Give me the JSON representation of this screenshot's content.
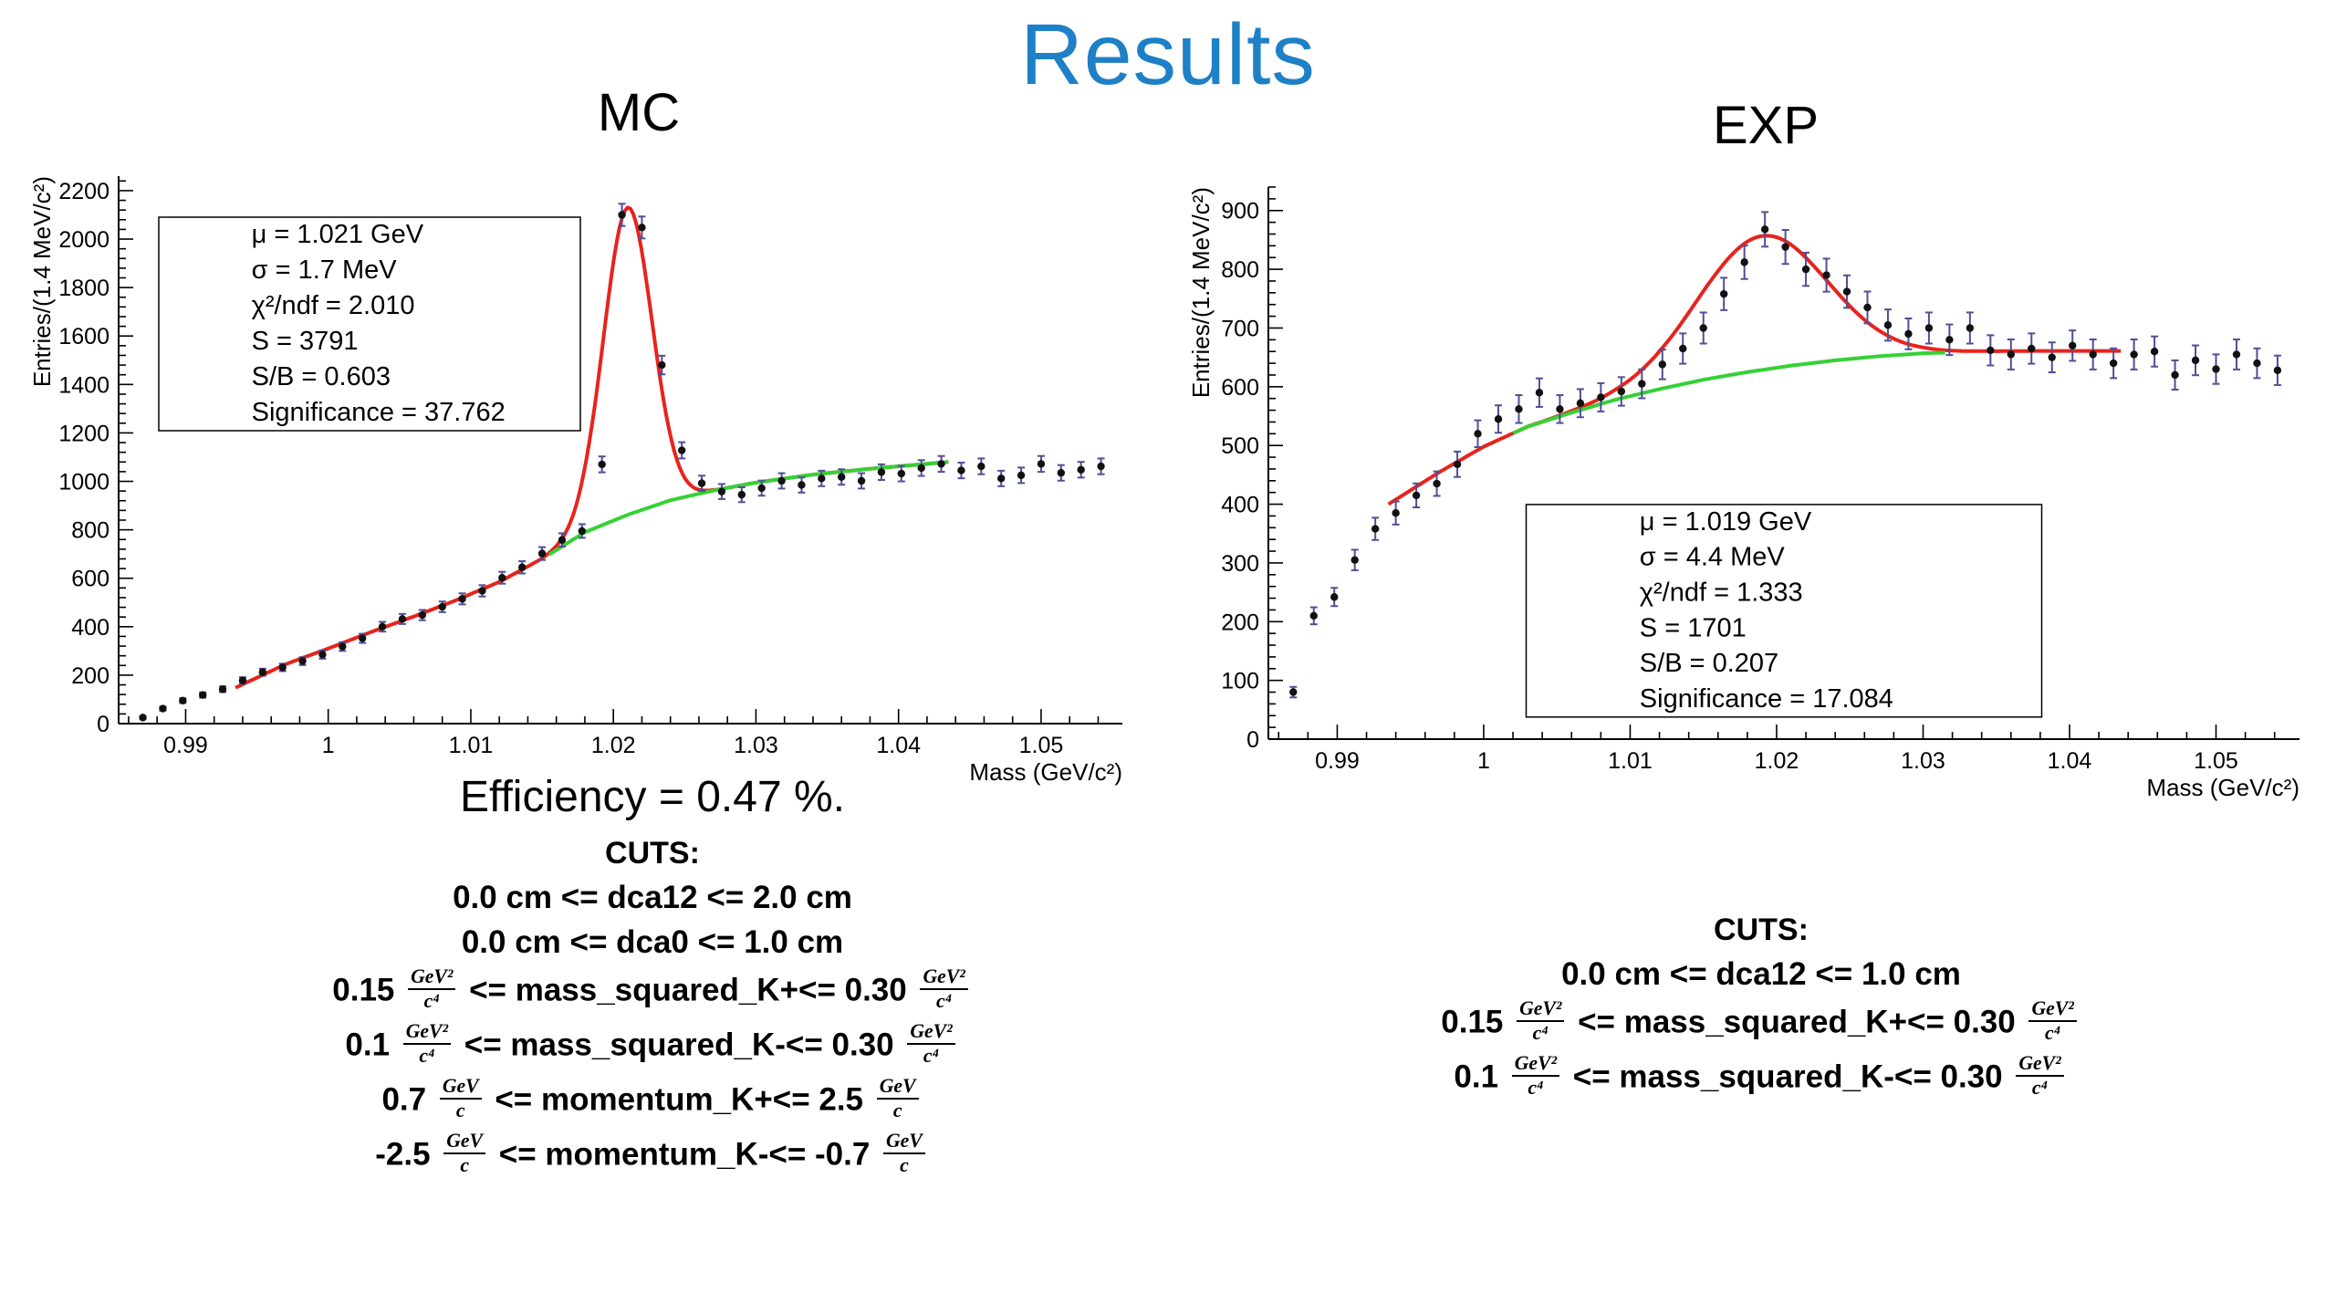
{
  "slide": {
    "title": "Results",
    "title_color": "#1e80c6"
  },
  "efficiency_label": "Efficiency = 0.47 %.",
  "colors": {
    "fit": "#e8231d",
    "background_fit": "#35d135",
    "marker": "#111111",
    "error": "#4f4f96",
    "axis": "#000000"
  },
  "chart_data": [
    {
      "id": "mc",
      "type": "scatter",
      "title": "MC",
      "xlabel": "Mass (GeV/c²)",
      "ylabel": "Entries/(1.4 MeV/c²)",
      "xlim": [
        0.9853,
        1.0557
      ],
      "ylim": [
        0,
        2260
      ],
      "x_major_ticks": [
        0.99,
        1,
        1.01,
        1.02,
        1.03,
        1.04,
        1.05
      ],
      "x_tick_labels": [
        "0.99",
        "1",
        "1.01",
        "1.02",
        "1.03",
        "1.04",
        "1.05"
      ],
      "x_minor_step": 0.002,
      "y_major_step": 200,
      "y_minor_step": 40,
      "y_label_max": 2200,
      "points": {
        "x_start": 0.987,
        "x_step": 0.0014,
        "errors": "sqrt",
        "values": [
          25,
          62,
          95,
          118,
          142,
          178,
          212,
          232,
          258,
          285,
          318,
          352,
          400,
          432,
          448,
          482,
          515,
          548,
          602,
          645,
          702,
          758,
          795,
          1070,
          2100,
          2048,
          1480,
          1128,
          992,
          958,
          945,
          972,
          1002,
          985,
          1012,
          1018,
          1002,
          1038,
          1032,
          1055,
          1072,
          1045,
          1062,
          1012,
          1025,
          1072,
          1035,
          1048,
          1062
        ]
      },
      "fit": {
        "model": "background + gaussian",
        "gaussian": {
          "amplitude": 1268,
          "mu": 1.021,
          "sigma": 0.0017
        },
        "background_points": [
          [
            0.9935,
            148
          ],
          [
            0.997,
            245
          ],
          [
            1.0,
            310
          ],
          [
            1.003,
            378
          ],
          [
            1.006,
            442
          ],
          [
            1.009,
            510
          ],
          [
            1.012,
            585
          ],
          [
            1.015,
            680
          ],
          [
            1.018,
            790
          ],
          [
            1.021,
            862
          ],
          [
            1.024,
            922
          ],
          [
            1.027,
            962
          ],
          [
            1.03,
            995
          ],
          [
            1.034,
            1028
          ],
          [
            1.038,
            1052
          ],
          [
            1.0435,
            1080
          ]
        ],
        "total_curve_range": [
          0.9935,
          1.0435
        ],
        "background_curve_range": [
          1.0155,
          1.0435
        ]
      },
      "stats_box": {
        "x": 0.04,
        "y": 0.075,
        "w": 0.42,
        "h": 0.39,
        "lines": [
          "μ = 1.021 GeV",
          "σ = 1.7 MeV",
          "χ²/ndf = 2.010",
          "S = 3791",
          "S/B = 0.603",
          "Significance = 37.762"
        ]
      }
    },
    {
      "id": "exp",
      "type": "scatter",
      "title": "EXP",
      "xlabel": "Mass (GeV/c²)",
      "ylabel": "Entries/(1.4 MeV/c²)",
      "xlim": [
        0.9853,
        1.0557
      ],
      "ylim": [
        0,
        940
      ],
      "x_major_ticks": [
        0.99,
        1,
        1.01,
        1.02,
        1.03,
        1.04,
        1.05
      ],
      "x_tick_labels": [
        "0.99",
        "1",
        "1.01",
        "1.02",
        "1.03",
        "1.04",
        "1.05"
      ],
      "x_minor_step": 0.002,
      "y_major_step": 100,
      "y_minor_step": 20,
      "y_label_max": 900,
      "points": {
        "x_start": 0.987,
        "x_step": 0.0014,
        "errors": "sqrt",
        "values": [
          80,
          210,
          242,
          305,
          358,
          385,
          415,
          435,
          468,
          520,
          545,
          562,
          590,
          562,
          572,
          582,
          592,
          605,
          638,
          665,
          700,
          758,
          812,
          868,
          838,
          800,
          790,
          762,
          735,
          705,
          690,
          700,
          680,
          700,
          662,
          655,
          665,
          650,
          670,
          655,
          640,
          655,
          660,
          620,
          645,
          630,
          655,
          640,
          628
        ]
      },
      "fit": {
        "model": "background + gaussian",
        "gaussian": {
          "amplitude": 228,
          "mu": 1.019,
          "sigma": 0.0044
        },
        "background_points": [
          [
            0.9935,
            400
          ],
          [
            0.997,
            455
          ],
          [
            1.0,
            498
          ],
          [
            1.003,
            532
          ],
          [
            1.006,
            556
          ],
          [
            1.009,
            578
          ],
          [
            1.012,
            596
          ],
          [
            1.015,
            612
          ],
          [
            1.018,
            625
          ],
          [
            1.021,
            636
          ],
          [
            1.024,
            645
          ],
          [
            1.027,
            652
          ],
          [
            1.03,
            657
          ],
          [
            1.034,
            660
          ],
          [
            1.038,
            661
          ],
          [
            1.0435,
            661
          ]
        ],
        "total_curve_range": [
          0.9935,
          1.0435
        ],
        "background_curve_range": [
          1.002,
          1.0315
        ]
      },
      "stats_box": {
        "x": 0.25,
        "y": 0.575,
        "w": 0.5,
        "h": 0.385,
        "lines": [
          "μ = 1.019 GeV",
          "σ = 4.4 MeV",
          "χ²/ndf = 1.333",
          "S = 1701",
          "S/B = 0.207",
          "Significance = 17.084"
        ]
      }
    }
  ],
  "cuts_mc": {
    "header": "CUTS:",
    "lines": [
      [
        {
          "t": "0.0 cm <= dca12 <= 2.0 cm"
        }
      ],
      [
        {
          "t": "0.0 cm <= dca0 <= 1.0 cm"
        }
      ],
      [
        {
          "t": "0.15 "
        },
        {
          "f": [
            "GeV²",
            "c⁴"
          ]
        },
        {
          "t": " <= mass_squared_K+<= 0.30 "
        },
        {
          "f": [
            "GeV²",
            "c⁴"
          ]
        }
      ],
      [
        {
          "t": "0.1 "
        },
        {
          "f": [
            "GeV²",
            "c⁴"
          ]
        },
        {
          "t": " <= mass_squared_K-<= 0.30 "
        },
        {
          "f": [
            "GeV²",
            "c⁴"
          ]
        }
      ],
      [
        {
          "t": "0.7 "
        },
        {
          "f": [
            "GeV",
            "c"
          ]
        },
        {
          "t": " <= momentum_K+<= 2.5 "
        },
        {
          "f": [
            "GeV",
            "c"
          ]
        }
      ],
      [
        {
          "t": "-2.5 "
        },
        {
          "f": [
            "GeV",
            "c"
          ]
        },
        {
          "t": " <= momentum_K-<= -0.7 "
        },
        {
          "f": [
            "GeV",
            "c"
          ]
        }
      ]
    ]
  },
  "cuts_exp": {
    "header": "CUTS:",
    "lines": [
      [
        {
          "t": "0.0 cm <= dca12 <= 1.0 cm"
        }
      ],
      [
        {
          "t": "0.15 "
        },
        {
          "f": [
            "GeV²",
            "c⁴"
          ]
        },
        {
          "t": " <= mass_squared_K+<= 0.30 "
        },
        {
          "f": [
            "GeV²",
            "c⁴"
          ]
        }
      ],
      [
        {
          "t": "0.1 "
        },
        {
          "f": [
            "GeV²",
            "c⁴"
          ]
        },
        {
          "t": " <= mass_squared_K-<= 0.30 "
        },
        {
          "f": [
            "GeV²",
            "c⁴"
          ]
        }
      ]
    ]
  }
}
